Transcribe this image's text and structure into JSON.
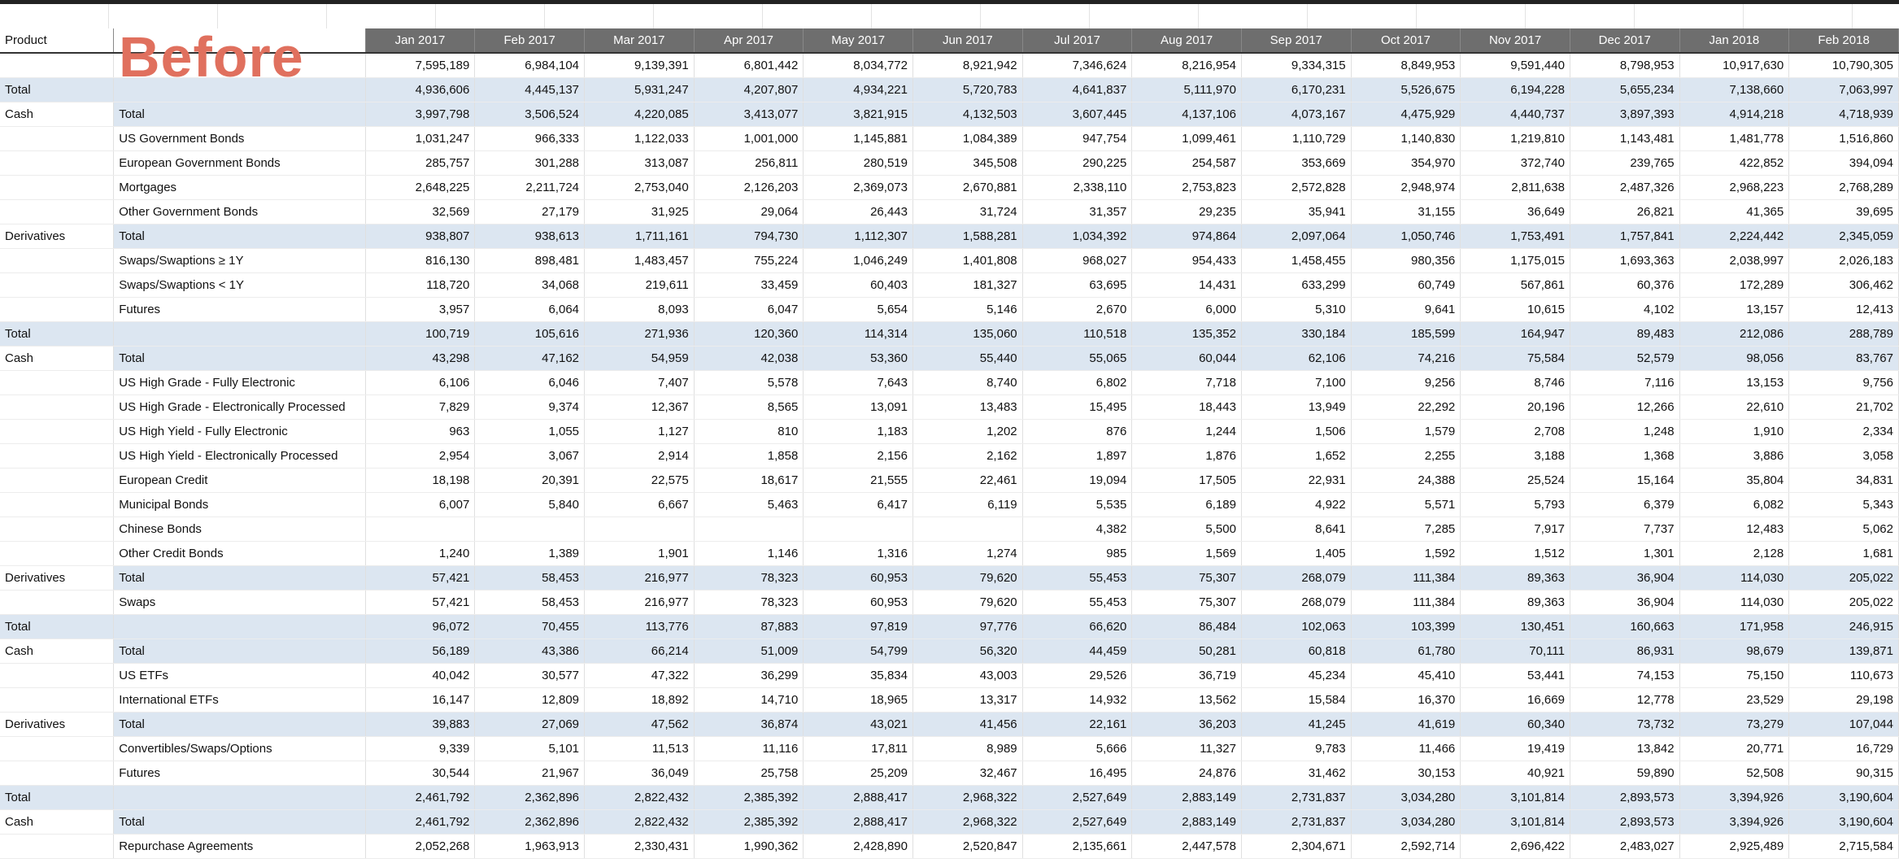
{
  "overlay_label": "Before",
  "header": {
    "product": "Product",
    "months": [
      "Jan 2017",
      "Feb 2017",
      "Mar 2017",
      "Apr 2017",
      "May 2017",
      "Jun 2017",
      "Jul 2017",
      "Aug 2017",
      "Sep 2017",
      "Oct 2017",
      "Nov 2017",
      "Dec 2017",
      "Jan 2018",
      "Feb 2018"
    ]
  },
  "table": {
    "rows": [
      [
        null,
        null,
        "7,595,189",
        "6,984,104",
        "9,139,391",
        "6,801,442",
        "8,034,772",
        "8,921,942",
        "7,346,624",
        "8,216,954",
        "9,334,315",
        "8,849,953",
        "9,591,440",
        "8,798,953",
        "10,917,630",
        "10,790,305"
      ],
      [
        "Total",
        null,
        "4,936,606",
        "4,445,137",
        "5,931,247",
        "4,207,807",
        "4,934,221",
        "5,720,783",
        "4,641,837",
        "5,111,970",
        "6,170,231",
        "5,526,675",
        "6,194,228",
        "5,655,234",
        "7,138,660",
        "7,063,997"
      ],
      [
        "Cash",
        "Total",
        "3,997,798",
        "3,506,524",
        "4,220,085",
        "3,413,077",
        "3,821,915",
        "4,132,503",
        "3,607,445",
        "4,137,106",
        "4,073,167",
        "4,475,929",
        "4,440,737",
        "3,897,393",
        "4,914,218",
        "4,718,939"
      ],
      [
        null,
        "US Government Bonds",
        "1,031,247",
        "966,333",
        "1,122,033",
        "1,001,000",
        "1,145,881",
        "1,084,389",
        "947,754",
        "1,099,461",
        "1,110,729",
        "1,140,830",
        "1,219,810",
        "1,143,481",
        "1,481,778",
        "1,516,860"
      ],
      [
        null,
        "European Government Bonds",
        "285,757",
        "301,288",
        "313,087",
        "256,811",
        "280,519",
        "345,508",
        "290,225",
        "254,587",
        "353,669",
        "354,970",
        "372,740",
        "239,765",
        "422,852",
        "394,094"
      ],
      [
        null,
        "Mortgages",
        "2,648,225",
        "2,211,724",
        "2,753,040",
        "2,126,203",
        "2,369,073",
        "2,670,881",
        "2,338,110",
        "2,753,823",
        "2,572,828",
        "2,948,974",
        "2,811,638",
        "2,487,326",
        "2,968,223",
        "2,768,289"
      ],
      [
        null,
        "Other Government Bonds",
        "32,569",
        "27,179",
        "31,925",
        "29,064",
        "26,443",
        "31,724",
        "31,357",
        "29,235",
        "35,941",
        "31,155",
        "36,649",
        "26,821",
        "41,365",
        "39,695"
      ],
      [
        "Derivatives",
        "Total",
        "938,807",
        "938,613",
        "1,711,161",
        "794,730",
        "1,112,307",
        "1,588,281",
        "1,034,392",
        "974,864",
        "2,097,064",
        "1,050,746",
        "1,753,491",
        "1,757,841",
        "2,224,442",
        "2,345,059"
      ],
      [
        null,
        "Swaps/Swaptions ≥ 1Y",
        "816,130",
        "898,481",
        "1,483,457",
        "755,224",
        "1,046,249",
        "1,401,808",
        "968,027",
        "954,433",
        "1,458,455",
        "980,356",
        "1,175,015",
        "1,693,363",
        "2,038,997",
        "2,026,183"
      ],
      [
        null,
        "Swaps/Swaptions < 1Y",
        "118,720",
        "34,068",
        "219,611",
        "33,459",
        "60,403",
        "181,327",
        "63,695",
        "14,431",
        "633,299",
        "60,749",
        "567,861",
        "60,376",
        "172,289",
        "306,462"
      ],
      [
        null,
        "Futures",
        "3,957",
        "6,064",
        "8,093",
        "6,047",
        "5,654",
        "5,146",
        "2,670",
        "6,000",
        "5,310",
        "9,641",
        "10,615",
        "4,102",
        "13,157",
        "12,413"
      ],
      [
        "Total",
        null,
        "100,719",
        "105,616",
        "271,936",
        "120,360",
        "114,314",
        "135,060",
        "110,518",
        "135,352",
        "330,184",
        "185,599",
        "164,947",
        "89,483",
        "212,086",
        "288,789"
      ],
      [
        "Cash",
        "Total",
        "43,298",
        "47,162",
        "54,959",
        "42,038",
        "53,360",
        "55,440",
        "55,065",
        "60,044",
        "62,106",
        "74,216",
        "75,584",
        "52,579",
        "98,056",
        "83,767"
      ],
      [
        null,
        "US High Grade - Fully Electronic",
        "6,106",
        "6,046",
        "7,407",
        "5,578",
        "7,643",
        "8,740",
        "6,802",
        "7,718",
        "7,100",
        "9,256",
        "8,746",
        "7,116",
        "13,153",
        "9,756"
      ],
      [
        null,
        "US High Grade - Electronically Processed",
        "7,829",
        "9,374",
        "12,367",
        "8,565",
        "13,091",
        "13,483",
        "15,495",
        "18,443",
        "13,949",
        "22,292",
        "20,196",
        "12,266",
        "22,610",
        "21,702"
      ],
      [
        null,
        "US High Yield - Fully Electronic",
        "963",
        "1,055",
        "1,127",
        "810",
        "1,183",
        "1,202",
        "876",
        "1,244",
        "1,506",
        "1,579",
        "2,708",
        "1,248",
        "1,910",
        "2,334"
      ],
      [
        null,
        "US High Yield - Electronically Processed",
        "2,954",
        "3,067",
        "2,914",
        "1,858",
        "2,156",
        "2,162",
        "1,897",
        "1,876",
        "1,652",
        "2,255",
        "3,188",
        "1,368",
        "3,886",
        "3,058"
      ],
      [
        null,
        "European Credit",
        "18,198",
        "20,391",
        "22,575",
        "18,617",
        "21,555",
        "22,461",
        "19,094",
        "17,505",
        "22,931",
        "24,388",
        "25,524",
        "15,164",
        "35,804",
        "34,831"
      ],
      [
        null,
        "Municipal Bonds",
        "6,007",
        "5,840",
        "6,667",
        "5,463",
        "6,417",
        "6,119",
        "5,535",
        "6,189",
        "4,922",
        "5,571",
        "5,793",
        "6,379",
        "6,082",
        "5,343"
      ],
      [
        null,
        "Chinese Bonds",
        null,
        null,
        null,
        null,
        null,
        null,
        "4,382",
        "5,500",
        "8,641",
        "7,285",
        "7,917",
        "7,737",
        "12,483",
        "5,062"
      ],
      [
        null,
        "Other Credit Bonds",
        "1,240",
        "1,389",
        "1,901",
        "1,146",
        "1,316",
        "1,274",
        "985",
        "1,569",
        "1,405",
        "1,592",
        "1,512",
        "1,301",
        "2,128",
        "1,681"
      ],
      [
        "Derivatives",
        "Total",
        "57,421",
        "58,453",
        "216,977",
        "78,323",
        "60,953",
        "79,620",
        "55,453",
        "75,307",
        "268,079",
        "111,384",
        "89,363",
        "36,904",
        "114,030",
        "205,022"
      ],
      [
        null,
        "Swaps",
        "57,421",
        "58,453",
        "216,977",
        "78,323",
        "60,953",
        "79,620",
        "55,453",
        "75,307",
        "268,079",
        "111,384",
        "89,363",
        "36,904",
        "114,030",
        "205,022"
      ],
      [
        "Total",
        null,
        "96,072",
        "70,455",
        "113,776",
        "87,883",
        "97,819",
        "97,776",
        "66,620",
        "86,484",
        "102,063",
        "103,399",
        "130,451",
        "160,663",
        "171,958",
        "246,915"
      ],
      [
        "Cash",
        "Total",
        "56,189",
        "43,386",
        "66,214",
        "51,009",
        "54,799",
        "56,320",
        "44,459",
        "50,281",
        "60,818",
        "61,780",
        "70,111",
        "86,931",
        "98,679",
        "139,871"
      ],
      [
        null,
        "US ETFs",
        "40,042",
        "30,577",
        "47,322",
        "36,299",
        "35,834",
        "43,003",
        "29,526",
        "36,719",
        "45,234",
        "45,410",
        "53,441",
        "74,153",
        "75,150",
        "110,673"
      ],
      [
        null,
        "International ETFs",
        "16,147",
        "12,809",
        "18,892",
        "14,710",
        "18,965",
        "13,317",
        "14,932",
        "13,562",
        "15,584",
        "16,370",
        "16,669",
        "12,778",
        "23,529",
        "29,198"
      ],
      [
        "Derivatives",
        "Total",
        "39,883",
        "27,069",
        "47,562",
        "36,874",
        "43,021",
        "41,456",
        "22,161",
        "36,203",
        "41,245",
        "41,619",
        "60,340",
        "73,732",
        "73,279",
        "107,044"
      ],
      [
        null,
        "Convertibles/Swaps/Options",
        "9,339",
        "5,101",
        "11,513",
        "11,116",
        "17,811",
        "8,989",
        "5,666",
        "11,327",
        "9,783",
        "11,466",
        "19,419",
        "13,842",
        "20,771",
        "16,729"
      ],
      [
        null,
        "Futures",
        "30,544",
        "21,967",
        "36,049",
        "25,758",
        "25,209",
        "32,467",
        "16,495",
        "24,876",
        "31,462",
        "30,153",
        "40,921",
        "59,890",
        "52,508",
        "90,315"
      ],
      [
        "Total",
        null,
        "2,461,792",
        "2,362,896",
        "2,822,432",
        "2,385,392",
        "2,888,417",
        "2,968,322",
        "2,527,649",
        "2,883,149",
        "2,731,837",
        "3,034,280",
        "3,101,814",
        "2,893,573",
        "3,394,926",
        "3,190,604"
      ],
      [
        "Cash",
        "Total",
        "2,461,792",
        "2,362,896",
        "2,822,432",
        "2,385,392",
        "2,888,417",
        "2,968,322",
        "2,527,649",
        "2,883,149",
        "2,731,837",
        "3,034,280",
        "3,101,814",
        "2,893,573",
        "3,394,926",
        "3,190,604"
      ],
      [
        null,
        "Repurchase Agreements",
        "2,052,268",
        "1,963,913",
        "2,330,431",
        "1,990,362",
        "2,428,890",
        "2,520,847",
        "2,135,661",
        "2,447,578",
        "2,304,671",
        "2,592,714",
        "2,696,422",
        "2,483,027",
        "2,925,489",
        "2,715,584"
      ]
    ]
  }
}
